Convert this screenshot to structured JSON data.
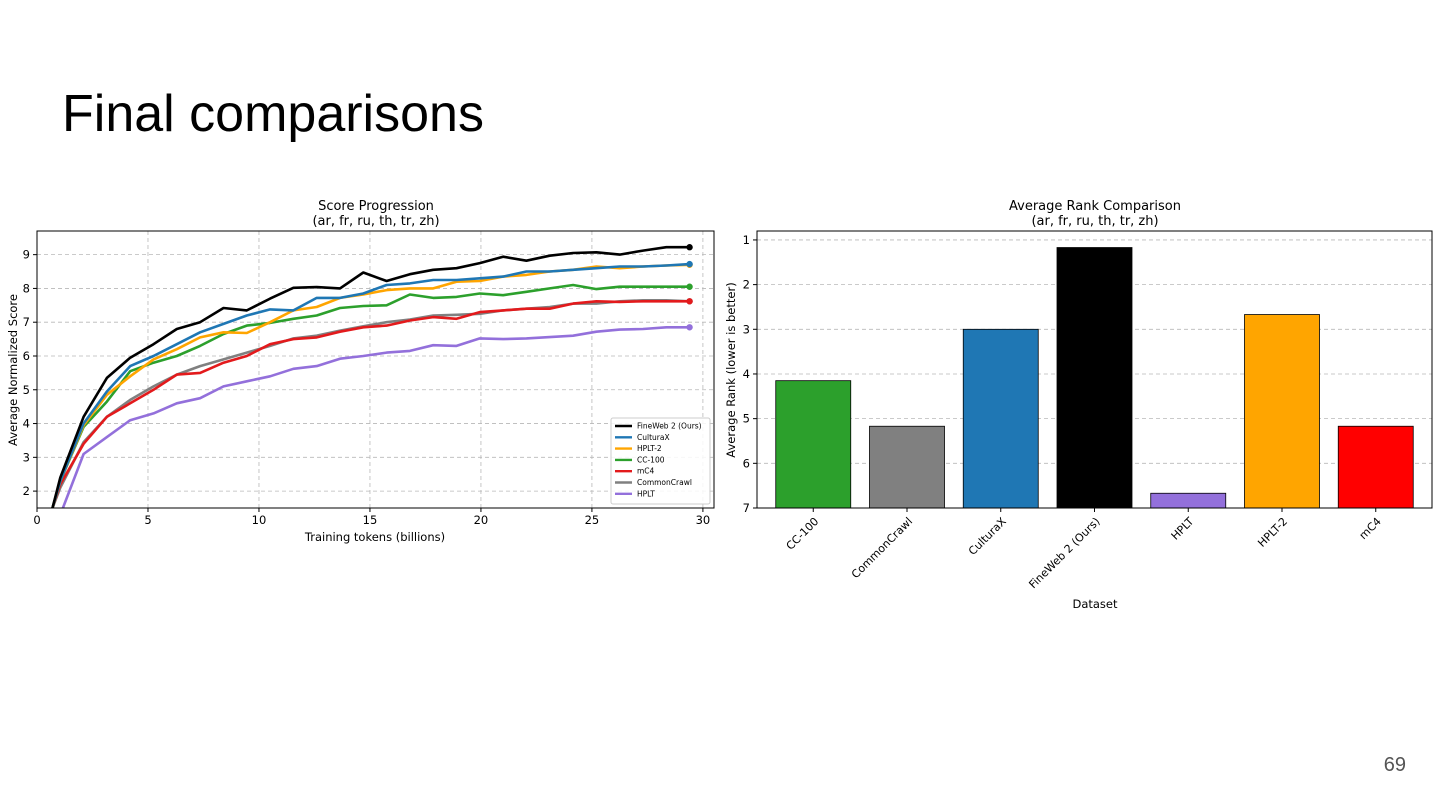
{
  "slide": {
    "title": "Final comparisons",
    "page_number": "69"
  },
  "chart_data": [
    {
      "type": "line",
      "title": "Score Progression",
      "subtitle": "(ar, fr, ru, th, tr, zh)",
      "xlabel": "Training tokens (billions)",
      "ylabel": "Average Normalized Score",
      "xlim": [
        0,
        30.5
      ],
      "ylim": [
        1.5,
        9.7
      ],
      "xticks": [
        0,
        5,
        10,
        15,
        20,
        25,
        30
      ],
      "yticks": [
        2,
        3,
        4,
        5,
        6,
        7,
        8,
        9
      ],
      "grid": true,
      "legend_position": "lower-right",
      "x": [
        0.7,
        1.05,
        2.1,
        3.15,
        4.2,
        5.25,
        6.3,
        7.35,
        8.4,
        9.45,
        10.5,
        11.55,
        12.6,
        13.65,
        14.7,
        15.75,
        16.8,
        17.85,
        18.9,
        19.95,
        21.0,
        22.05,
        23.1,
        24.15,
        25.2,
        26.25,
        27.3,
        28.35,
        29.4
      ],
      "series": [
        {
          "name": "FineWeb 2 (Ours)",
          "color": "#000000",
          "values": [
            1.5,
            2.4,
            4.2,
            5.35,
            5.95,
            6.35,
            6.8,
            7.0,
            7.42,
            7.35,
            7.7,
            8.02,
            8.04,
            8.0,
            8.47,
            8.22,
            8.42,
            8.55,
            8.6,
            8.75,
            8.94,
            8.82,
            8.97,
            9.05,
            9.07,
            9.0,
            9.12,
            9.22,
            9.22
          ]
        },
        {
          "name": "CulturaX",
          "color": "#1f77b4",
          "values": [
            1.5,
            2.3,
            4.0,
            4.95,
            5.7,
            6.0,
            6.35,
            6.7,
            6.95,
            7.2,
            7.38,
            7.35,
            7.72,
            7.72,
            7.85,
            8.1,
            8.15,
            8.25,
            8.25,
            8.3,
            8.35,
            8.5,
            8.5,
            8.55,
            8.6,
            8.65,
            8.65,
            8.68,
            8.72
          ]
        },
        {
          "name": "HPLT-2",
          "color": "#ffa500",
          "values": [
            1.5,
            2.3,
            3.95,
            4.85,
            5.4,
            5.9,
            6.2,
            6.55,
            6.7,
            6.68,
            7.0,
            7.35,
            7.45,
            7.72,
            7.82,
            7.95,
            8.0,
            8.0,
            8.2,
            8.22,
            8.35,
            8.4,
            8.5,
            8.55,
            8.65,
            8.6,
            8.65,
            8.68,
            8.7
          ]
        },
        {
          "name": "CC-100",
          "color": "#2ca02c",
          "values": [
            1.5,
            2.3,
            3.9,
            4.65,
            5.55,
            5.8,
            6.0,
            6.3,
            6.65,
            6.9,
            6.98,
            7.1,
            7.2,
            7.42,
            7.48,
            7.5,
            7.82,
            7.72,
            7.75,
            7.85,
            7.8,
            7.9,
            8.0,
            8.1,
            7.98,
            8.05,
            8.05,
            8.05,
            8.05
          ]
        },
        {
          "name": "mC4",
          "color": "#e31a1c",
          "values": [
            1.5,
            2.2,
            3.4,
            4.2,
            4.6,
            5.0,
            5.45,
            5.5,
            5.8,
            6.0,
            6.35,
            6.5,
            6.55,
            6.72,
            6.85,
            6.9,
            7.05,
            7.15,
            7.1,
            7.3,
            7.35,
            7.4,
            7.4,
            7.55,
            7.62,
            7.6,
            7.62,
            7.62,
            7.62
          ]
        },
        {
          "name": "CommonCrawl",
          "color": "#808080",
          "values": [
            1.5,
            2.1,
            3.45,
            4.2,
            4.7,
            5.1,
            5.45,
            5.7,
            5.9,
            6.1,
            6.3,
            6.52,
            6.6,
            6.75,
            6.88,
            7.0,
            7.08,
            7.2,
            7.22,
            7.25,
            7.35,
            7.4,
            7.45,
            7.55,
            7.55,
            7.62,
            7.65,
            7.65,
            7.62
          ]
        },
        {
          "name": "HPLT",
          "color": "#9370db",
          "values": [
            1.0,
            1.3,
            3.1,
            3.6,
            4.1,
            4.3,
            4.6,
            4.75,
            5.1,
            5.25,
            5.4,
            5.62,
            5.7,
            5.92,
            6.0,
            6.1,
            6.15,
            6.32,
            6.3,
            6.52,
            6.5,
            6.52,
            6.56,
            6.6,
            6.72,
            6.78,
            6.8,
            6.85,
            6.85
          ]
        }
      ]
    },
    {
      "type": "bar",
      "title": "Average Rank Comparison",
      "subtitle": "(ar, fr, ru, th, tr, zh)",
      "xlabel": "Dataset",
      "ylabel": "Average Rank (lower is better)",
      "ylim": [
        0.8,
        7.0
      ],
      "y_inverted": true,
      "yticks": [
        1,
        2,
        3,
        4,
        5,
        6,
        7
      ],
      "grid": true,
      "categories": [
        "CC-100",
        "CommonCrawl",
        "CulturaX",
        "FineWeb 2 (Ours)",
        "HPLT",
        "HPLT-2",
        "mC4"
      ],
      "values": [
        4.15,
        5.17,
        3.0,
        1.17,
        6.67,
        2.67,
        5.17
      ],
      "colors": [
        "#2ca02c",
        "#808080",
        "#1f77b4",
        "#000000",
        "#9370db",
        "#ffa500",
        "#ff0000"
      ]
    }
  ]
}
